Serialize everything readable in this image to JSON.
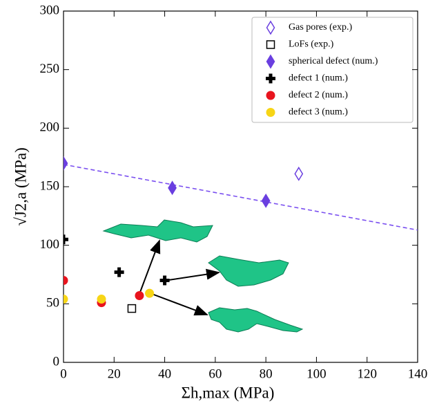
{
  "chart_data": {
    "type": "scatter",
    "xlabel": "Σh,max (MPa)",
    "ylabel": "√J2,a (MPa)",
    "xlim": [
      0,
      140
    ],
    "ylim": [
      0,
      300
    ],
    "xticks": [
      0,
      20,
      40,
      60,
      80,
      100,
      120,
      140
    ],
    "yticks": [
      0,
      50,
      100,
      150,
      200,
      250,
      300
    ],
    "legend": "upper right",
    "series": [
      {
        "name": "Gas pores (exp.)",
        "color": "#6a3fe0",
        "marker": "diamond-open",
        "x": [
          93
        ],
        "values": [
          161
        ]
      },
      {
        "name": "LoFs (exp.)",
        "color": "#000000",
        "marker": "square-open",
        "x": [
          27
        ],
        "values": [
          46
        ]
      },
      {
        "name": "spherical defect (num.)",
        "color": "#6a3fe0",
        "marker": "diamond",
        "x": [
          0,
          43,
          80
        ],
        "values": [
          170,
          149,
          138
        ]
      },
      {
        "name": "defect 1 (num.)",
        "color": "#000000",
        "marker": "plus",
        "x": [
          0,
          22,
          40
        ],
        "values": [
          105,
          77,
          70
        ]
      },
      {
        "name": "defect 2 (num.)",
        "color": "#e8141e",
        "marker": "circle",
        "x": [
          0,
          15,
          30
        ],
        "values": [
          70,
          51,
          57
        ]
      },
      {
        "name": "defect 3 (num.)",
        "color": "#f7d516",
        "marker": "circle",
        "x": [
          0,
          15,
          34
        ],
        "values": [
          54,
          54,
          59
        ]
      }
    ],
    "trend_line": {
      "color": "#7a4ff0",
      "x": [
        0,
        140
      ],
      "values": [
        169,
        113
      ]
    }
  }
}
